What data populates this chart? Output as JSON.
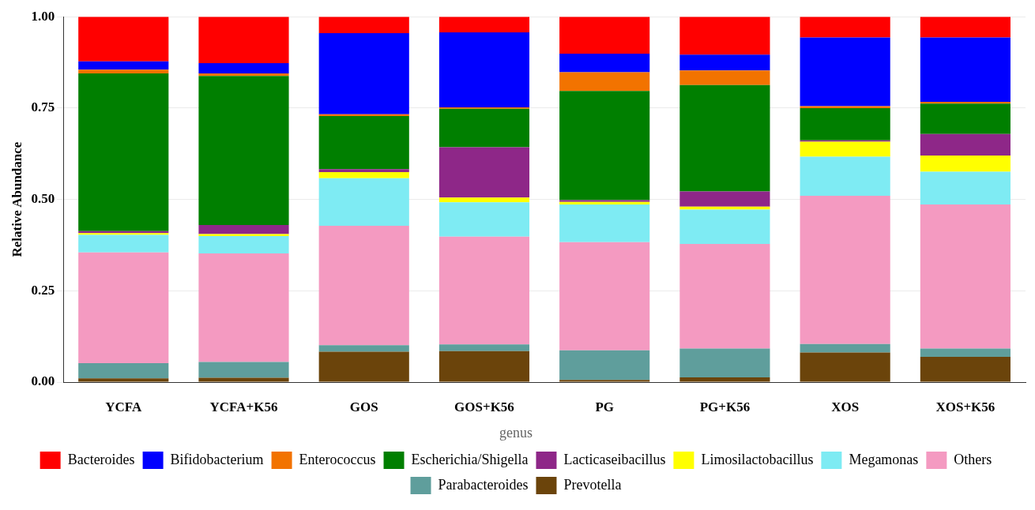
{
  "chart_data": {
    "type": "bar",
    "stacked": true,
    "ylabel": "Relative Abundance",
    "legend_title": "genus",
    "legend": "bottom",
    "grid": "y",
    "categories": [
      "YCFA",
      "YCFA+K56",
      "GOS",
      "GOS+K56",
      "PG",
      "PG+K56",
      "XOS",
      "XOS+K56"
    ],
    "ylim": [
      0,
      1
    ],
    "yticks": [
      {
        "value": 0,
        "label": "0.00"
      },
      {
        "value": 0.25,
        "label": "0.25"
      },
      {
        "value": 0.5,
        "label": "0.50"
      },
      {
        "value": 0.75,
        "label": "0.75"
      },
      {
        "value": 1,
        "label": "1.00"
      }
    ],
    "series": [
      {
        "name": "Prevotella",
        "color": "#6b440b",
        "values": [
          0.01,
          0.012,
          0.083,
          0.085,
          0.006,
          0.013,
          0.081,
          0.069
        ]
      },
      {
        "name": "Parabacteroides",
        "color": "#5f9e9c",
        "values": [
          0.042,
          0.043,
          0.018,
          0.018,
          0.081,
          0.079,
          0.023,
          0.023
        ]
      },
      {
        "name": "Others",
        "color": "#f49ac1",
        "values": [
          0.303,
          0.297,
          0.327,
          0.295,
          0.296,
          0.286,
          0.406,
          0.394
        ]
      },
      {
        "name": "Megamonas",
        "color": "#7eebf3",
        "values": [
          0.048,
          0.048,
          0.13,
          0.094,
          0.103,
          0.094,
          0.107,
          0.09
        ]
      },
      {
        "name": "Limosilactobacillus",
        "color": "#ffff00",
        "values": [
          0.005,
          0.005,
          0.017,
          0.013,
          0.007,
          0.008,
          0.041,
          0.044
        ]
      },
      {
        "name": "Lacticaseibacillus",
        "color": "#8e2788",
        "values": [
          0.005,
          0.025,
          0.008,
          0.138,
          0.005,
          0.042,
          0.004,
          0.059
        ]
      },
      {
        "name": "Escherichia/Shigella",
        "color": "#007f00",
        "values": [
          0.432,
          0.408,
          0.145,
          0.105,
          0.299,
          0.291,
          0.088,
          0.083
        ]
      },
      {
        "name": "Enterococcus",
        "color": "#f27300",
        "values": [
          0.01,
          0.007,
          0.005,
          0.004,
          0.051,
          0.04,
          0.005,
          0.005
        ]
      },
      {
        "name": "Bifidobacterium",
        "color": "#0000ff",
        "values": [
          0.023,
          0.028,
          0.222,
          0.205,
          0.051,
          0.043,
          0.188,
          0.176
        ]
      },
      {
        "name": "Bacteroides",
        "color": "#ff0000",
        "values": [
          0.122,
          0.127,
          0.045,
          0.043,
          0.101,
          0.104,
          0.057,
          0.057
        ]
      }
    ]
  }
}
